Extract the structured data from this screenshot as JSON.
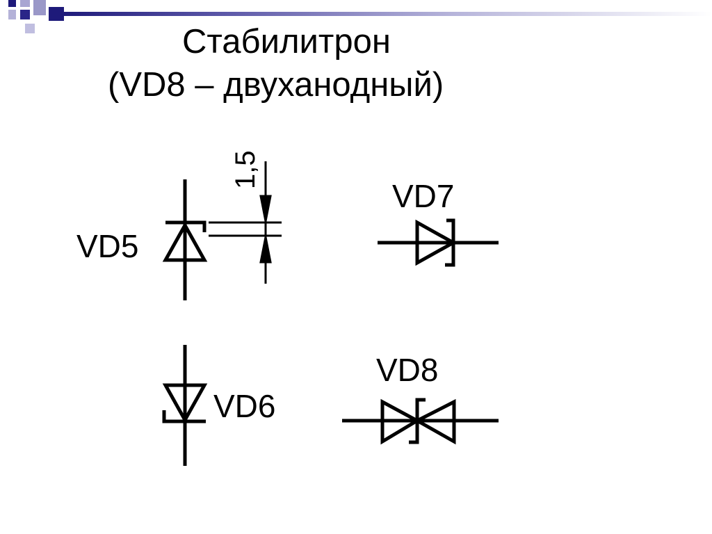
{
  "title": {
    "line1": "Стабилитрон",
    "line2": "(VD8 – двуханодный)"
  },
  "labels": {
    "vd5": "VD5",
    "vd6": "VD6",
    "vd7": "VD7",
    "vd8": "VD8",
    "dimension": "1,5"
  },
  "colors": {
    "accent_dark": "#1e1a7a",
    "accent_light": "#9a98c8",
    "gradient_end": "#ffffff",
    "stroke": "#000000"
  }
}
